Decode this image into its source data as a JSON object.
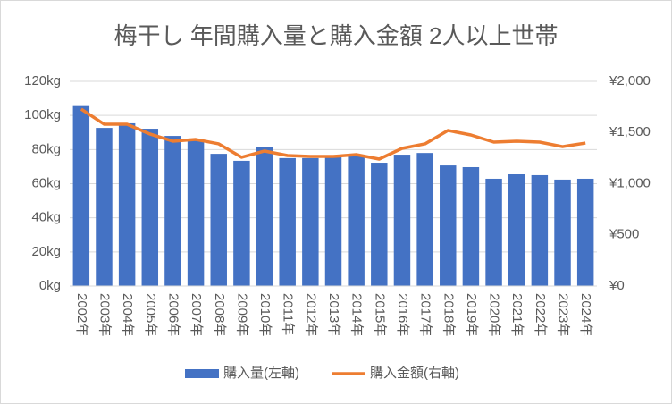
{
  "chart_data": {
    "type": "bar-line",
    "title": "梅干し 年間購入量と購入金額 2人以上世帯",
    "categories": [
      "2002年",
      "2003年",
      "2004年",
      "2005年",
      "2006年",
      "2007年",
      "2008年",
      "2009年",
      "2010年",
      "2011年",
      "2012年",
      "2013年",
      "2014年",
      "2015年",
      "2016年",
      "2017年",
      "2018年",
      "2019年",
      "2020年",
      "2021年",
      "2022年",
      "2023年",
      "2024年"
    ],
    "series": [
      {
        "name": "購入量(左軸)",
        "type": "bar",
        "color": "#4472c4",
        "values": [
          105.5,
          92.7,
          95.4,
          92.2,
          88,
          86,
          77.5,
          73.4,
          81.7,
          75,
          75,
          75.5,
          76,
          72.3,
          77,
          78,
          70.7,
          69.7,
          62.9,
          65.5,
          65,
          62.4,
          62.9
        ]
      },
      {
        "name": "購入金額(右軸)",
        "type": "line",
        "axis": "y2",
        "color": "#ed7d31",
        "values": [
          1729,
          1581,
          1581,
          1485,
          1415,
          1432,
          1389,
          1258,
          1319,
          1275,
          1266,
          1266,
          1284,
          1240,
          1345,
          1389,
          1520,
          1476,
          1406,
          1415,
          1406,
          1362,
          1397
        ]
      }
    ],
    "ylim": [
      0,
      120
    ],
    "yticks": [
      {
        "value": 0,
        "label": "0kg"
      },
      {
        "value": 20,
        "label": "20kg"
      },
      {
        "value": 40,
        "label": "40kg"
      },
      {
        "value": 60,
        "label": "60kg"
      },
      {
        "value": 80,
        "label": "80kg"
      },
      {
        "value": 100,
        "label": "100kg"
      },
      {
        "value": 120,
        "label": "120kg"
      }
    ],
    "y2lim": [
      0,
      2000
    ],
    "y2ticks": [
      {
        "value": 0,
        "label": "¥0"
      },
      {
        "value": 500,
        "label": "¥500"
      },
      {
        "value": 1000,
        "label": "¥1,000"
      },
      {
        "value": 1500,
        "label": "¥1,500"
      },
      {
        "value": 2000,
        "label": "¥2,000"
      }
    ],
    "grid": true,
    "legend": "bottom"
  }
}
